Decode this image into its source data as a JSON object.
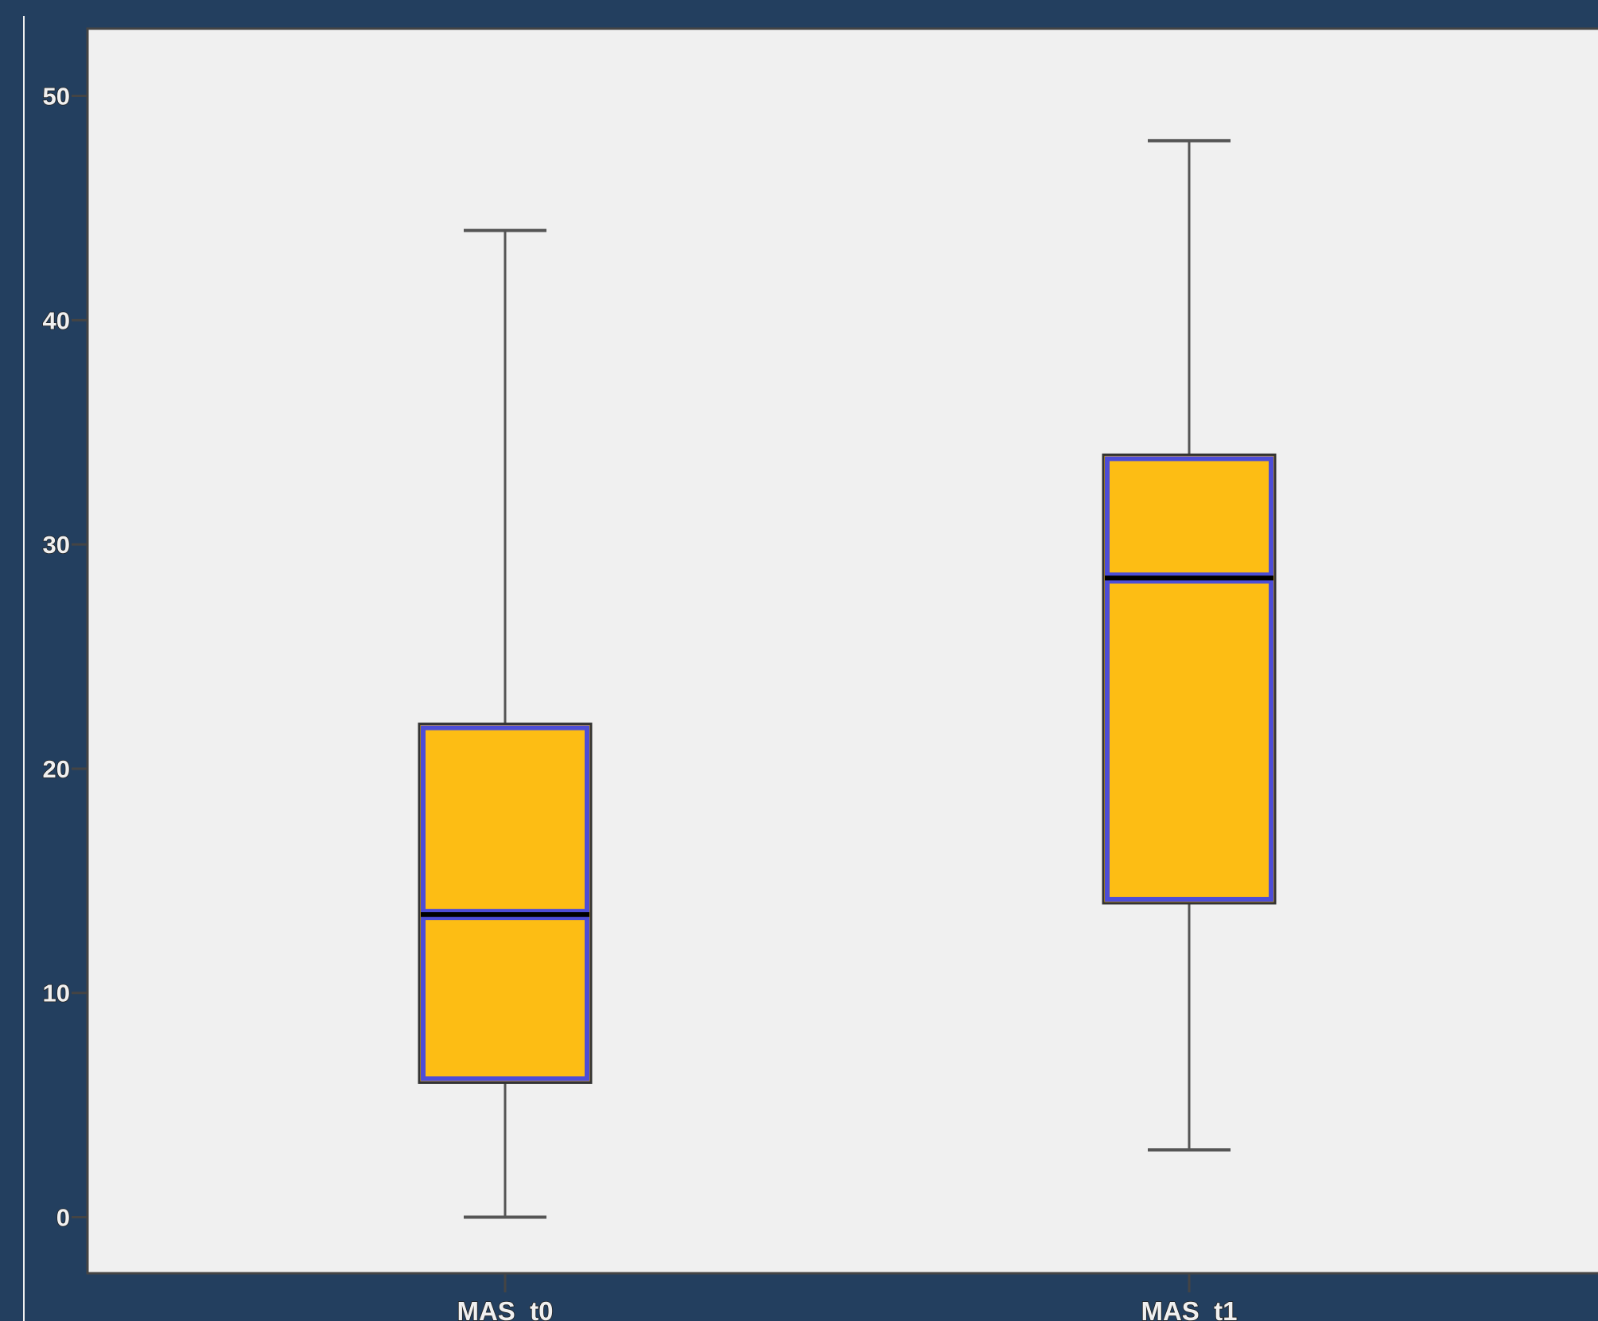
{
  "chart_data": {
    "type": "boxplot",
    "title": "",
    "xlabel": "",
    "ylabel": "",
    "categories": [
      "MAS_t0",
      "MAS_t1"
    ],
    "boxes": [
      {
        "category": "MAS_t0",
        "min": 0,
        "q1": 6,
        "median": 13.5,
        "q3": 22,
        "max": 44
      },
      {
        "category": "MAS_t1",
        "min": 3,
        "q1": 14,
        "median": 28.5,
        "q3": 34,
        "max": 48
      }
    ],
    "ylim": [
      -2.5,
      53
    ],
    "yticks": [
      "0",
      "10",
      "20",
      "30",
      "40",
      "50"
    ],
    "grid": false,
    "legend": "none",
    "colors": {
      "box_fill": "#fdbd14",
      "box_border": "#4d4dd6",
      "median_line": "#000000",
      "whisker": "#555555",
      "plot_background": "#f0f0f0",
      "page_background": "#233f5f"
    }
  }
}
